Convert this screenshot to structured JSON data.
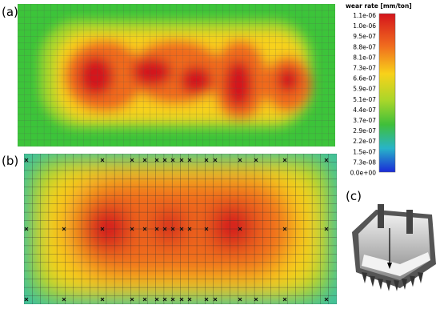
{
  "panels": {
    "a": "(a)",
    "b": "(b)",
    "c": "(c)"
  },
  "colorbar": {
    "title": "wear rate [mm/ton]",
    "labels": [
      "1.1e-06",
      "1.0e-06",
      "9.5e-07",
      "8.8e-07",
      "8.1e-07",
      "7.3e-07",
      "6.6e-07",
      "5.9e-07",
      "5.1e-07",
      "4.4e-07",
      "3.7e-07",
      "2.9e-07",
      "2.2e-07",
      "1.5e-07",
      "7.3e-08",
      "0.0e+00"
    ]
  }
}
